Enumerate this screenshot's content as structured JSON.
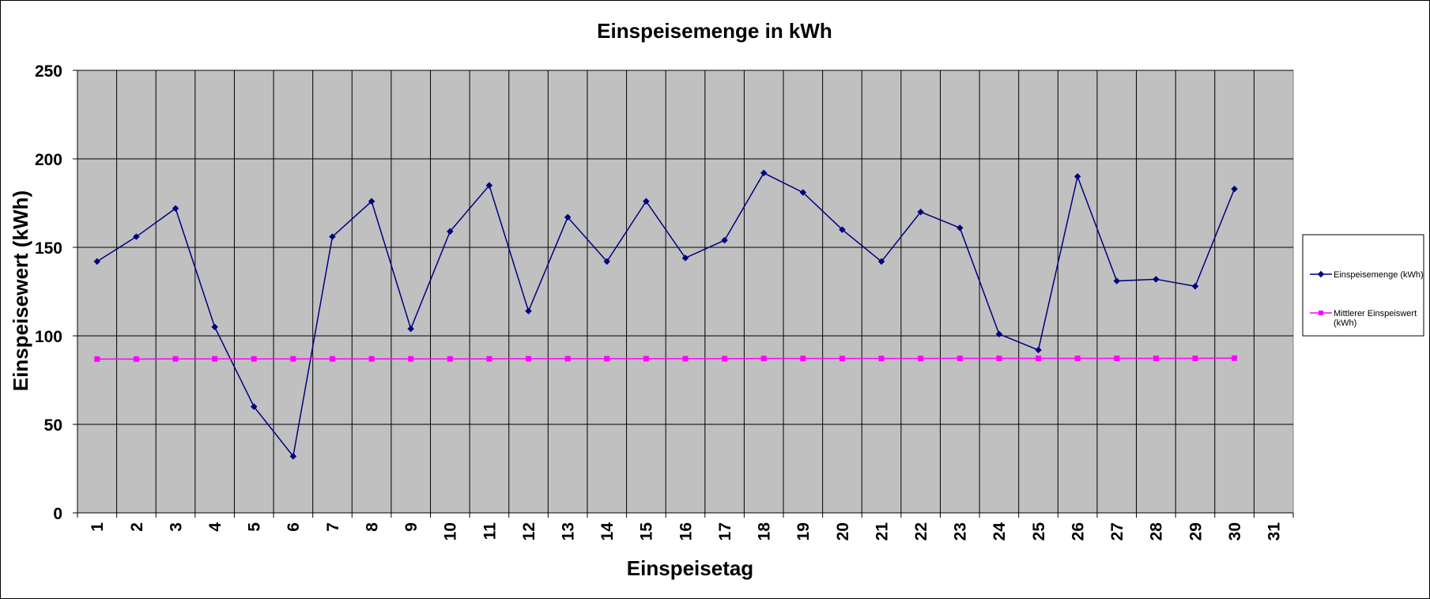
{
  "chart_data": {
    "type": "line",
    "title": "Einspeisemenge in kWh",
    "xlabel": "Einspeisetag",
    "ylabel": "Einspeisewert  (kWh)",
    "categories": [
      "1",
      "2",
      "3",
      "4",
      "5",
      "6",
      "7",
      "8",
      "9",
      "10",
      "11",
      "12",
      "13",
      "14",
      "15",
      "16",
      "17",
      "18",
      "19",
      "20",
      "21",
      "22",
      "23",
      "24",
      "25",
      "26",
      "27",
      "28",
      "29",
      "30",
      "31"
    ],
    "ylim": [
      0,
      250
    ],
    "yticks": [
      "0",
      "50",
      "100",
      "150",
      "200",
      "250"
    ],
    "grid": true,
    "legend_position": "right",
    "plot_background": "#c0c0c0",
    "series": [
      {
        "name": "Einspeisemenge (kWh)",
        "color": "#000080",
        "marker": "diamond",
        "values": [
          142,
          156,
          172,
          105,
          60,
          32,
          156,
          176,
          104,
          159,
          185,
          114,
          167,
          142,
          176,
          144,
          154,
          192,
          181,
          160,
          142,
          170,
          161,
          101,
          92,
          190,
          131,
          132,
          128,
          183,
          null
        ]
      },
      {
        "name_lines": [
          "Mittlerer Einspeiswert",
          "(kWh)"
        ],
        "color": "#ff00ff",
        "marker": "square",
        "values": [
          86.9,
          86.9,
          87.0,
          87.0,
          87.0,
          87.0,
          87.0,
          87.0,
          87.0,
          87.0,
          87.0,
          87.1,
          87.1,
          87.1,
          87.1,
          87.1,
          87.1,
          87.2,
          87.2,
          87.2,
          87.2,
          87.2,
          87.3,
          87.3,
          87.3,
          87.3,
          87.3,
          87.3,
          87.3,
          87.4,
          null
        ]
      }
    ]
  }
}
